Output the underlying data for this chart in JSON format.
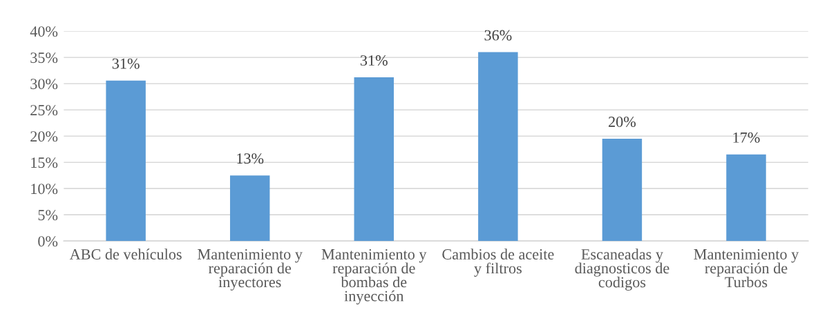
{
  "chart_data": {
    "type": "bar",
    "categories": [
      "ABC de vehículos",
      "Mantenimiento y reparación de inyectores",
      "Mantenimiento y reparación de bombas de inyección",
      "Cambios de aceite y filtros",
      "Escaneadas y diagnosticos de codigos",
      "Mantenimiento y reparación de Turbos"
    ],
    "values": [
      30.6,
      12.5,
      31.2,
      36.0,
      19.5,
      16.5
    ],
    "value_labels": [
      "31%",
      "13%",
      "31%",
      "36%",
      "20%",
      "17%"
    ],
    "color": "#5b9bd5",
    "ylim": [
      0,
      40
    ],
    "yticks": [
      {
        "value": 0,
        "label": "0%"
      },
      {
        "value": 5,
        "label": "5%"
      },
      {
        "value": 10,
        "label": "10%"
      },
      {
        "value": 15,
        "label": "15%"
      },
      {
        "value": 20,
        "label": "20%"
      },
      {
        "value": 25,
        "label": "25%"
      },
      {
        "value": 30,
        "label": "30%"
      },
      {
        "value": 35,
        "label": "35%"
      },
      {
        "value": 40,
        "label": "40%"
      }
    ],
    "grid": "y"
  }
}
